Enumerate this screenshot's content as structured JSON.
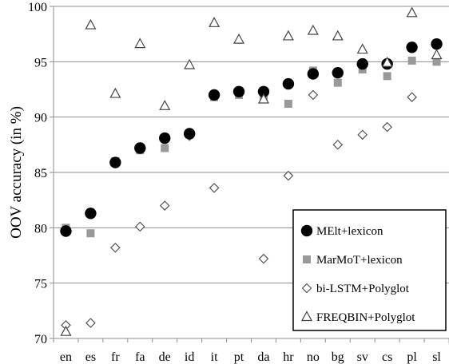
{
  "chart_data": {
    "type": "scatter",
    "title": "",
    "xlabel": "",
    "ylabel": "OOV accuracy (in %)",
    "ylim": [
      70,
      100
    ],
    "yticks": [
      70,
      75,
      80,
      85,
      90,
      95,
      100
    ],
    "grid": "horizontal",
    "legend_position": "bottom-right",
    "categories": [
      "en",
      "es",
      "fr",
      "fa",
      "de",
      "id",
      "it",
      "pt",
      "da",
      "hr",
      "no",
      "bg",
      "sv",
      "cs",
      "pl",
      "sl"
    ],
    "series": [
      {
        "name": "MElt+lexicon",
        "marker": "circle",
        "color": "#000000",
        "values": [
          79.7,
          81.3,
          85.9,
          87.2,
          88.1,
          88.5,
          92.0,
          92.3,
          92.3,
          93.0,
          93.9,
          94.0,
          94.8,
          94.8,
          96.3,
          96.6
        ]
      },
      {
        "name": "MarMoT+lexicon",
        "marker": "square",
        "color": "#999999",
        "values": [
          80.0,
          79.5,
          86.0,
          87.0,
          87.2,
          88.4,
          91.8,
          92.0,
          91.7,
          91.2,
          94.2,
          93.1,
          94.3,
          93.7,
          95.1,
          95.0
        ]
      },
      {
        "name": "bi-LSTM+Polyglot",
        "marker": "diamond",
        "color": "#ffffff",
        "values": [
          71.2,
          71.4,
          78.2,
          80.1,
          82.0,
          88.3,
          83.6,
          92.2,
          77.2,
          84.7,
          92.0,
          87.5,
          88.4,
          89.1,
          91.8,
          null
        ]
      },
      {
        "name": "FREQBIN+Polyglot",
        "marker": "triangle",
        "color": "#ffffff",
        "values": [
          70.6,
          98.3,
          92.1,
          96.6,
          91.0,
          94.7,
          98.5,
          97.0,
          91.6,
          97.3,
          97.8,
          97.3,
          96.1,
          94.9,
          99.4,
          95.6
        ]
      }
    ]
  }
}
